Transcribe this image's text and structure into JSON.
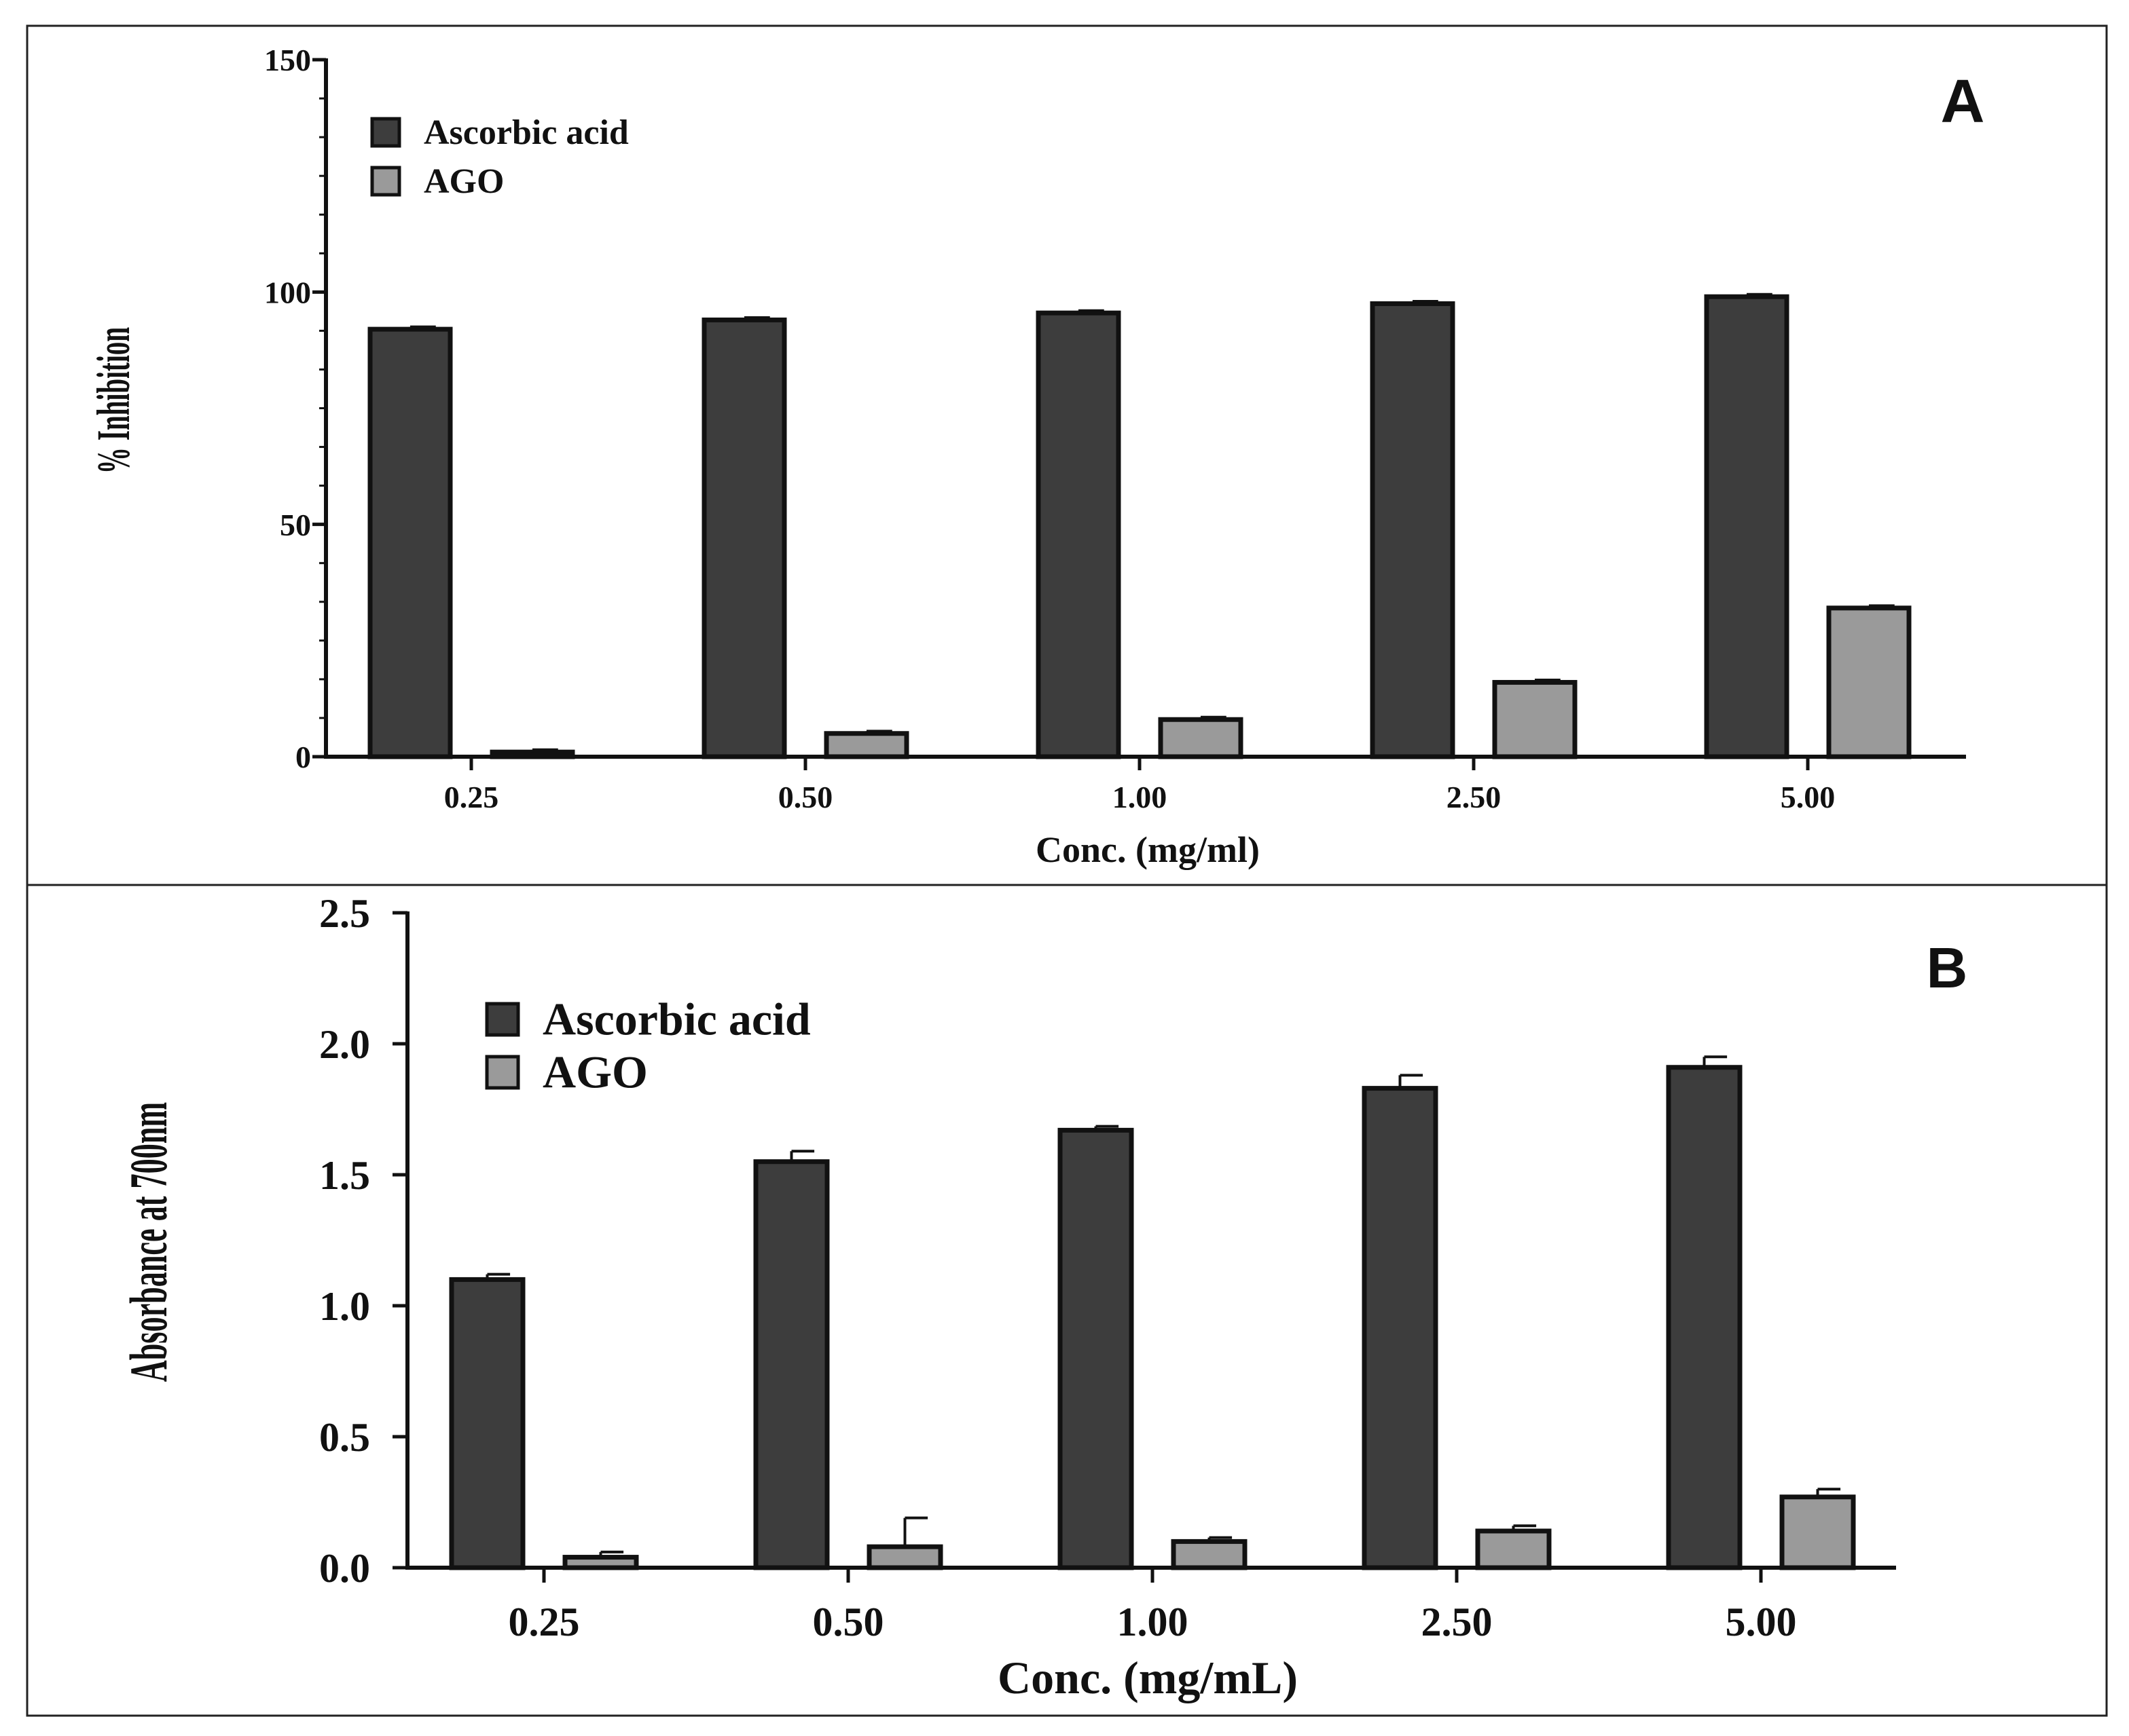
{
  "chart_data": [
    {
      "type": "bar",
      "panel_label": "A",
      "categories": [
        "0.25",
        "0.50",
        "1.00",
        "2.50",
        "5.00"
      ],
      "xlabel": "Conc. (mg/ml)",
      "ylabel": "% Inhibition",
      "ylim": [
        0,
        150
      ],
      "yticks": [
        "0",
        "50",
        "100",
        "150"
      ],
      "legend_position": "top-left",
      "series": [
        {
          "name": "Ascorbic acid",
          "color": "#3d3d3d",
          "values": [
            92,
            94,
            95.5,
            97.5,
            99
          ],
          "errors": [
            0.5,
            0.5,
            0.5,
            0.5,
            0.5
          ]
        },
        {
          "name": "AGO",
          "color": "#9a9a9a",
          "values": [
            1,
            5,
            8,
            16,
            32
          ],
          "errors": [
            0.5,
            0.5,
            0.5,
            0.5,
            0.5
          ]
        }
      ]
    },
    {
      "type": "bar",
      "panel_label": "B",
      "categories": [
        "0.25",
        "0.50",
        "1.00",
        "2.50",
        "5.00"
      ],
      "xlabel": "Conc. (mg/mL)",
      "ylabel": "Absorbance at 700nm",
      "ylim": [
        0,
        2.5
      ],
      "yticks": [
        "0.0",
        "0.5",
        "1.0",
        "1.5",
        "2.0",
        "2.5"
      ],
      "legend_position": "top-left",
      "series": [
        {
          "name": "Ascorbic acid",
          "color": "#3d3d3d",
          "values": [
            1.1,
            1.55,
            1.67,
            1.83,
            1.91
          ],
          "errors": [
            0.02,
            0.04,
            0.015,
            0.05,
            0.04
          ]
        },
        {
          "name": "AGO",
          "color": "#9a9a9a",
          "values": [
            0.04,
            0.08,
            0.1,
            0.14,
            0.27
          ],
          "errors": [
            0.02,
            0.11,
            0.015,
            0.02,
            0.03
          ]
        }
      ]
    }
  ]
}
